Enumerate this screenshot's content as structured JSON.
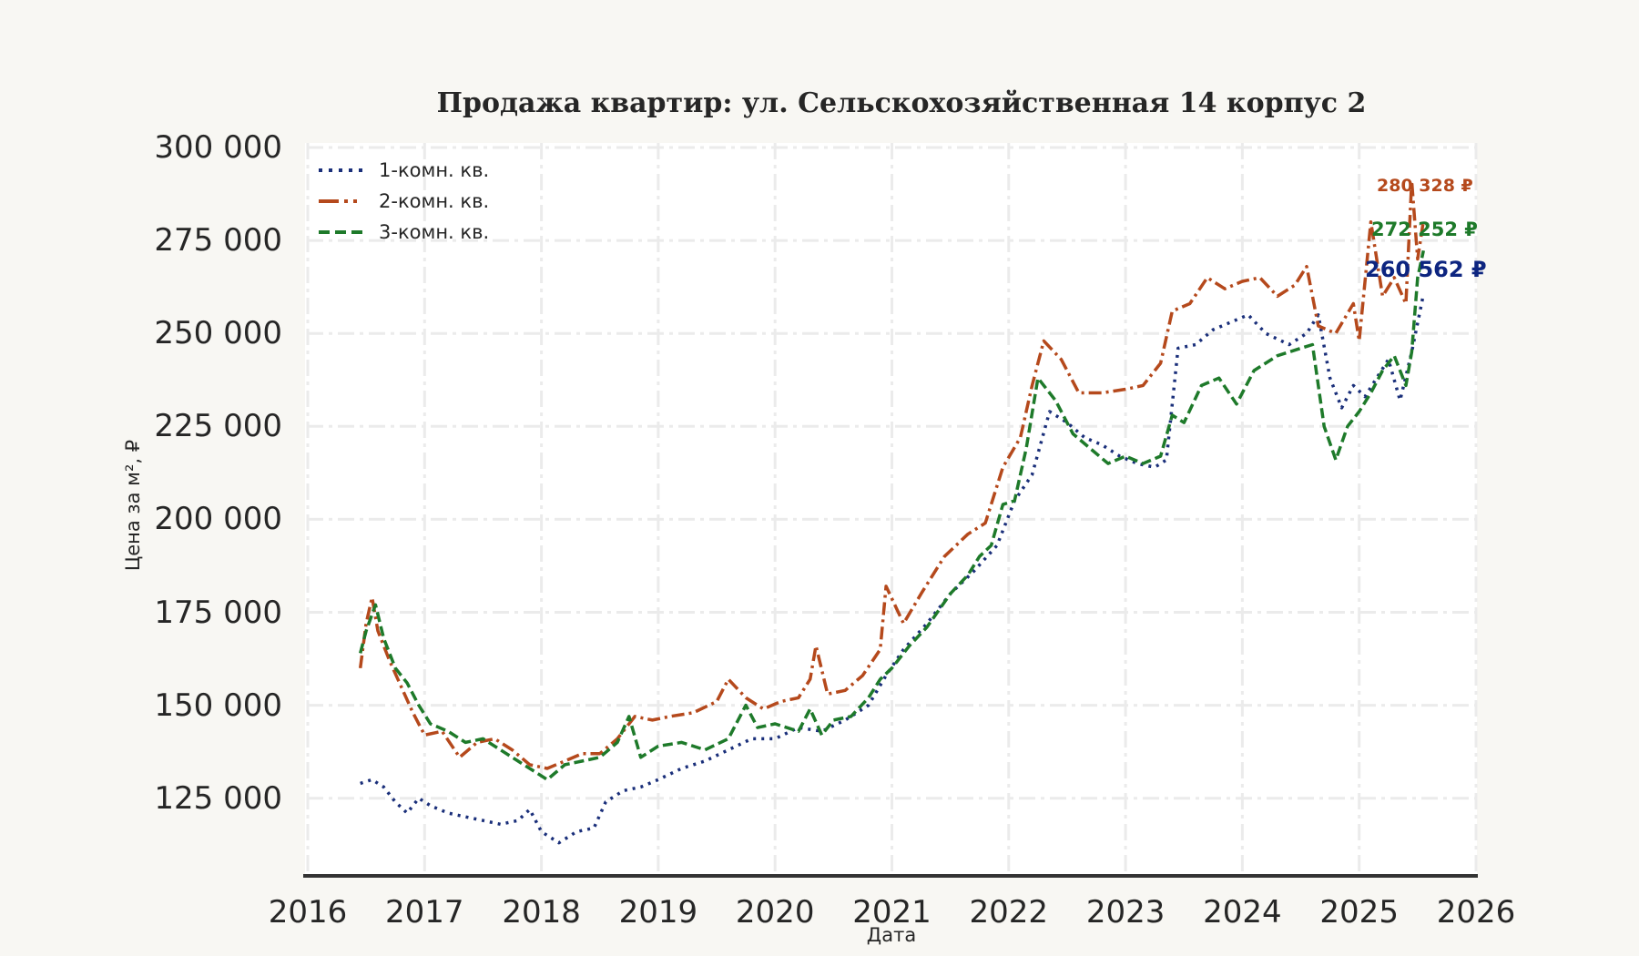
{
  "chart_data": {
    "type": "line",
    "title": "Продажа квартир: ул. Сельскохозяйственная 14 корпус 2",
    "xlabel": "Дата",
    "ylabel": "Цена за м², ₽",
    "xlim": [
      2016,
      2026
    ],
    "ylim": [
      106000,
      300000
    ],
    "x_ticks": [
      "2016",
      "2017",
      "2018",
      "2019",
      "2020",
      "2021",
      "2022",
      "2023",
      "2024",
      "2025",
      "2026"
    ],
    "y_ticks": [
      "300 000",
      "275 000",
      "250 000",
      "225 000",
      "200 000",
      "175 000",
      "150 000",
      "125 000"
    ],
    "y_tick_values": [
      300000,
      275000,
      250000,
      225000,
      200000,
      175000,
      150000,
      125000
    ],
    "grid": true,
    "legend_position": "upper left",
    "series": [
      {
        "name": "1-комн. кв.",
        "color": "#1a2f7a",
        "style": "dotted",
        "end_label": "260 562 ₽",
        "end_value": 260562,
        "x": [
          2016.45,
          2016.55,
          2016.65,
          2016.75,
          2016.85,
          2016.95,
          2017.05,
          2017.2,
          2017.35,
          2017.5,
          2017.65,
          2017.8,
          2017.9,
          2018.0,
          2018.15,
          2018.3,
          2018.45,
          2018.55,
          2018.7,
          2018.85,
          2019.0,
          2019.2,
          2019.4,
          2019.6,
          2019.8,
          2020.0,
          2020.2,
          2020.4,
          2020.6,
          2020.8,
          2020.95,
          2021.1,
          2021.3,
          2021.5,
          2021.7,
          2021.9,
          2022.05,
          2022.2,
          2022.35,
          2022.5,
          2022.65,
          2022.8,
          2022.95,
          2023.1,
          2023.25,
          2023.35,
          2023.45,
          2023.6,
          2023.75,
          2023.9,
          2024.05,
          2024.2,
          2024.4,
          2024.55,
          2024.65,
          2024.75,
          2024.85,
          2024.95,
          2025.05,
          2025.15,
          2025.25,
          2025.35,
          2025.45,
          2025.55
        ],
        "values": [
          129000,
          130000,
          128000,
          124000,
          121000,
          125000,
          123000,
          121000,
          120000,
          119000,
          118000,
          119000,
          122000,
          116000,
          113000,
          116000,
          117000,
          124000,
          127000,
          128000,
          130000,
          133000,
          135000,
          138000,
          141000,
          141000,
          144000,
          143000,
          146000,
          150000,
          158000,
          165000,
          172000,
          180000,
          186000,
          193000,
          205000,
          212000,
          229000,
          226000,
          222000,
          220000,
          217000,
          215000,
          214000,
          216000,
          246000,
          247000,
          251000,
          253000,
          255000,
          250000,
          247000,
          250000,
          255000,
          238000,
          230000,
          236000,
          233000,
          238000,
          243000,
          232000,
          245000,
          260562
        ]
      },
      {
        "name": "2-комн. кв.",
        "color": "#b5491c",
        "style": "dashdot",
        "end_label": "280 328 ₽",
        "end_value": 280328,
        "x": [
          2016.45,
          2016.5,
          2016.55,
          2016.6,
          2016.7,
          2016.8,
          2016.9,
          2017.0,
          2017.15,
          2017.3,
          2017.45,
          2017.6,
          2017.75,
          2017.9,
          2018.05,
          2018.2,
          2018.35,
          2018.5,
          2018.65,
          2018.8,
          2018.95,
          2019.1,
          2019.3,
          2019.5,
          2019.6,
          2019.75,
          2019.9,
          2020.05,
          2020.2,
          2020.3,
          2020.35,
          2020.45,
          2020.6,
          2020.75,
          2020.9,
          2020.95,
          2021.1,
          2021.25,
          2021.45,
          2021.65,
          2021.8,
          2021.95,
          2022.1,
          2022.2,
          2022.3,
          2022.45,
          2022.6,
          2022.8,
          2023.0,
          2023.15,
          2023.3,
          2023.4,
          2023.55,
          2023.7,
          2023.85,
          2024.0,
          2024.15,
          2024.3,
          2024.45,
          2024.55,
          2024.65,
          2024.8,
          2024.95,
          2025.0,
          2025.1,
          2025.2,
          2025.3,
          2025.4,
          2025.45,
          2025.5,
          2025.55
        ],
        "values": [
          160000,
          172000,
          179000,
          170000,
          162000,
          155000,
          148000,
          142000,
          143000,
          136000,
          140000,
          141000,
          138000,
          134000,
          133000,
          135000,
          137000,
          137000,
          141000,
          147000,
          146000,
          147000,
          148000,
          151000,
          157000,
          152000,
          149000,
          151000,
          152000,
          157000,
          166000,
          153000,
          154000,
          158000,
          165000,
          182000,
          172000,
          180000,
          190000,
          196000,
          199000,
          214000,
          222000,
          236000,
          248000,
          243000,
          234000,
          234000,
          235000,
          236000,
          242000,
          256000,
          258000,
          265000,
          262000,
          264000,
          265000,
          260000,
          263000,
          268000,
          252000,
          250000,
          258000,
          248000,
          280000,
          260000,
          265000,
          258000,
          291000,
          270000,
          280328
        ]
      },
      {
        "name": "3-комн. кв.",
        "color": "#1e7a2a",
        "style": "dashed",
        "end_label": "272 252 ₽",
        "end_value": 272252,
        "x": [
          2016.45,
          2016.5,
          2016.58,
          2016.65,
          2016.75,
          2016.85,
          2016.95,
          2017.05,
          2017.2,
          2017.35,
          2017.5,
          2017.65,
          2017.8,
          2017.95,
          2018.05,
          2018.2,
          2018.35,
          2018.5,
          2018.65,
          2018.75,
          2018.85,
          2019.0,
          2019.2,
          2019.4,
          2019.6,
          2019.75,
          2019.85,
          2020.0,
          2020.2,
          2020.3,
          2020.4,
          2020.5,
          2020.65,
          2020.8,
          2020.9,
          2021.0,
          2021.15,
          2021.3,
          2021.5,
          2021.65,
          2021.75,
          2021.85,
          2021.95,
          2022.05,
          2022.15,
          2022.25,
          2022.4,
          2022.55,
          2022.7,
          2022.85,
          2023.0,
          2023.15,
          2023.3,
          2023.4,
          2023.5,
          2023.65,
          2023.8,
          2023.95,
          2024.1,
          2024.3,
          2024.5,
          2024.6,
          2024.7,
          2024.8,
          2024.9,
          2025.0,
          2025.1,
          2025.2,
          2025.3,
          2025.4,
          2025.45,
          2025.5,
          2025.55
        ],
        "values": [
          164000,
          170000,
          177000,
          168000,
          160000,
          156000,
          150000,
          145000,
          143000,
          140000,
          141000,
          138000,
          135000,
          132000,
          130000,
          134000,
          135000,
          136000,
          140000,
          147000,
          136000,
          139000,
          140000,
          138000,
          141000,
          150000,
          144000,
          145000,
          143000,
          149000,
          142000,
          146000,
          147000,
          152000,
          157000,
          160000,
          166000,
          171000,
          180000,
          185000,
          190000,
          193000,
          204000,
          205000,
          219000,
          238000,
          232000,
          223000,
          219000,
          215000,
          217000,
          215000,
          217000,
          228000,
          226000,
          236000,
          238000,
          231000,
          240000,
          244000,
          246000,
          247000,
          225000,
          216000,
          225000,
          229000,
          234000,
          240000,
          244000,
          236000,
          245000,
          265000,
          272252
        ]
      }
    ]
  }
}
